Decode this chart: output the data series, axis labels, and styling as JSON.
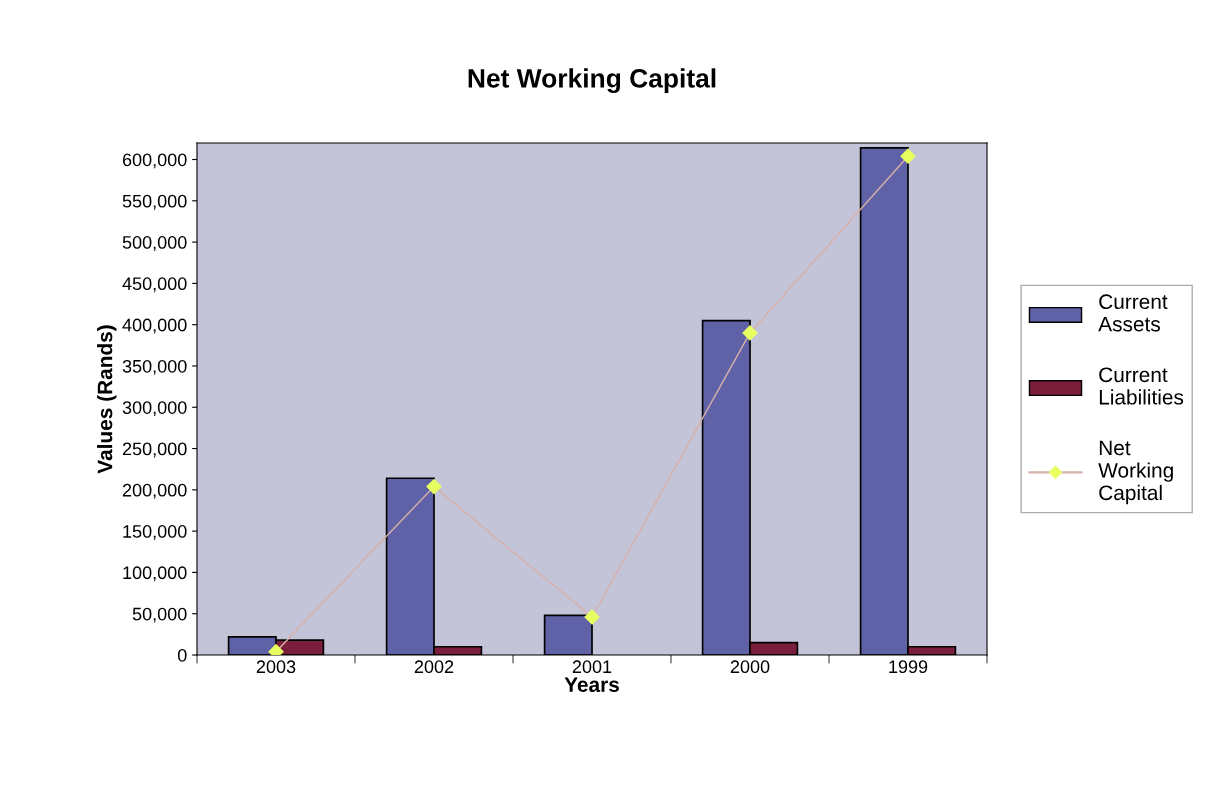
{
  "chart_data": {
    "type": "bar",
    "title": "Net Working Capital",
    "xlabel": "Years",
    "ylabel": "Values (Rands)",
    "categories": [
      "2003",
      "2002",
      "2001",
      "2000",
      "1999"
    ],
    "series": [
      {
        "name": "Current Assets",
        "color": "#6062a8",
        "values": [
          22000,
          214000,
          48000,
          405000,
          614000
        ]
      },
      {
        "name": "Current Liabilities",
        "color": "#7a1e3c",
        "values": [
          18000,
          10000,
          null,
          15000,
          10000
        ]
      },
      {
        "name": "Net Working Capital",
        "type": "line",
        "color": "#e8ff60",
        "values": [
          4000,
          204000,
          46000,
          390000,
          604000
        ]
      }
    ],
    "ylim": [
      0,
      620000
    ],
    "yticks": [
      {
        "value": 0,
        "label": "0"
      },
      {
        "value": 50000,
        "label": "50,000"
      },
      {
        "value": 100000,
        "label": "100,000"
      },
      {
        "value": 150000,
        "label": "150,000"
      },
      {
        "value": 200000,
        "label": "200,000"
      },
      {
        "value": 250000,
        "label": "250,000"
      },
      {
        "value": 300000,
        "label": "300,000"
      },
      {
        "value": 350000,
        "label": "350,000"
      },
      {
        "value": 400000,
        "label": "400,000"
      },
      {
        "value": 450000,
        "label": "450,000"
      },
      {
        "value": 500000,
        "label": "500,000"
      },
      {
        "value": 550000,
        "label": "550,000"
      },
      {
        "value": 600000,
        "label": "600,000"
      }
    ],
    "grid": false,
    "legend": "right",
    "marker": "diamond"
  }
}
